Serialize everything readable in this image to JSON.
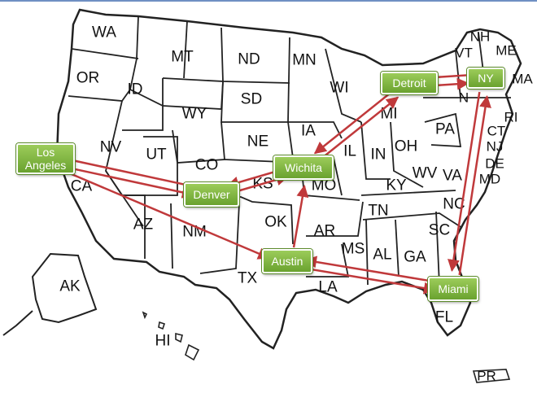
{
  "states": {
    "WA": "WA",
    "OR": "OR",
    "CA": "CA",
    "NV": "NV",
    "ID": "ID",
    "MT": "MT",
    "WY": "WY",
    "UT": "UT",
    "AZ": "AZ",
    "CO": "CO",
    "NM": "NM",
    "ND": "ND",
    "SD": "SD",
    "NE": "NE",
    "KS": "KS",
    "OK": "OK",
    "TX": "TX",
    "MN": "MN",
    "IA": "IA",
    "MO": "MO",
    "AR": "AR",
    "LA": "LA",
    "WI": "WI",
    "IL": "IL",
    "MI": "MI",
    "IN": "IN",
    "OH": "OH",
    "KY": "KY",
    "TN": "TN",
    "MS": "MS",
    "AL": "AL",
    "GA": "GA",
    "FL": "FL",
    "SC": "SC",
    "NC": "NC",
    "VA": "VA",
    "WV": "WV",
    "PA": "PA",
    "NY": "N",
    "NJ": "NJ",
    "DE": "DE",
    "MD": "MD",
    "CT": "CT",
    "RI": "RI",
    "MA": "MA",
    "VT": "VT",
    "NH": "NH",
    "ME": "ME",
    "AK": "AK",
    "HI": "HI",
    "PR": "PR"
  },
  "cities": {
    "los_angeles": "Los\nAngeles",
    "denver": "Denver",
    "wichita": "Wichita",
    "austin": "Austin",
    "detroit": "Detroit",
    "ny": "NY",
    "miami": "Miami"
  },
  "routes": [
    [
      "los_angeles",
      "denver"
    ],
    [
      "denver",
      "los_angeles"
    ],
    [
      "los_angeles",
      "austin"
    ],
    [
      "denver",
      "wichita"
    ],
    [
      "wichita",
      "denver"
    ],
    [
      "austin",
      "wichita"
    ],
    [
      "wichita",
      "detroit"
    ],
    [
      "detroit",
      "wichita"
    ],
    [
      "ny",
      "detroit"
    ],
    [
      "detroit",
      "ny"
    ],
    [
      "ny",
      "miami"
    ],
    [
      "miami",
      "ny"
    ],
    [
      "miami",
      "austin"
    ],
    [
      "austin",
      "miami"
    ]
  ],
  "colors": {
    "route": "#c0393b",
    "city_fill": "#7fb53e",
    "state_stroke": "#222222",
    "land_fill": "#ffffff"
  }
}
